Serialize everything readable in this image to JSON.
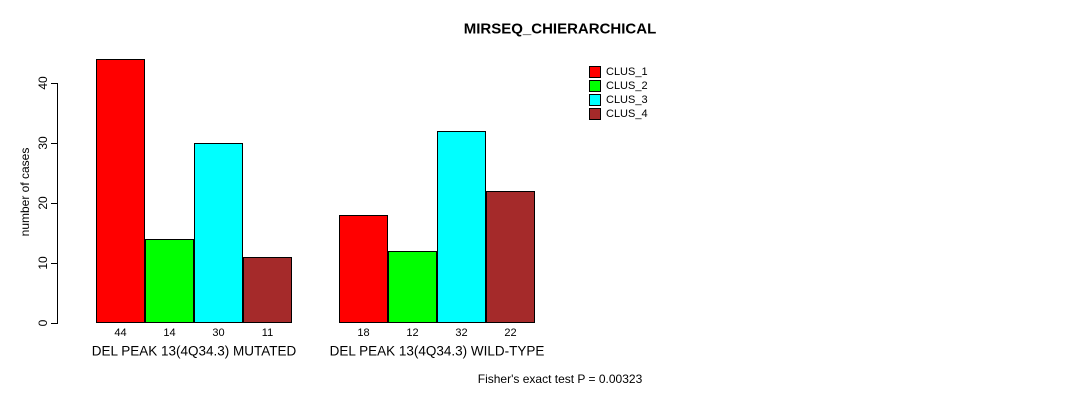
{
  "chart_data": {
    "type": "bar",
    "title": "MIRSEQ_CHIERARCHICAL",
    "ylabel": "number of cases",
    "xlabel": "",
    "categories": [
      "DEL PEAK 13(4Q34.3) MUTATED",
      "DEL PEAK 13(4Q34.3) WILD-TYPE"
    ],
    "series": [
      {
        "name": "CLUS_1",
        "color": "#FF0000",
        "values": [
          44,
          18
        ]
      },
      {
        "name": "CLUS_2",
        "color": "#00FF00",
        "values": [
          14,
          12
        ]
      },
      {
        "name": "CLUS_3",
        "color": "#00FFFF",
        "values": [
          30,
          32
        ]
      },
      {
        "name": "CLUS_4",
        "color": "#A52A2A",
        "values": [
          11,
          22
        ]
      }
    ],
    "yticks": [
      0,
      10,
      20,
      30,
      40
    ],
    "ylim": [
      0,
      44
    ],
    "grid": false,
    "legend_position": "top-right",
    "bar_value_labels": true,
    "annotation": "Fisher's exact test P = 0.00323"
  }
}
